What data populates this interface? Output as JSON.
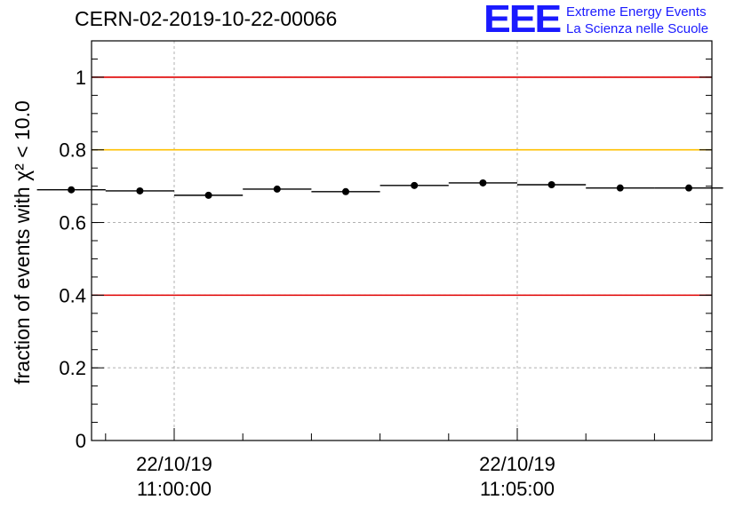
{
  "header": {
    "title": "CERN-02-2019-10-22-00066",
    "logo_mark": "EEE",
    "logo_line1": "Extreme Energy Events",
    "logo_line2": "La Scienza nelle Scuole"
  },
  "colors": {
    "red_line": "#e00000",
    "yellow_line": "#ffc000",
    "logo": "#1a1aff"
  },
  "chart_data": {
    "type": "scatter",
    "title": "CERN-02-2019-10-22-00066",
    "ylabel": "fraction of events with χ² < 10.0",
    "xlabel": "",
    "ylim": [
      0,
      1.1
    ],
    "yticks": [
      "0",
      "0.2",
      "0.4",
      "0.6",
      "0.8",
      "1"
    ],
    "xtick_labels": [
      {
        "date": "22/10/19",
        "time": "11:00:00"
      },
      {
        "date": "22/10/19",
        "time": "11:05:00"
      }
    ],
    "grid": true,
    "reference_lines": [
      {
        "y": 1.0,
        "color": "red"
      },
      {
        "y": 0.8,
        "color": "yellow"
      },
      {
        "y": 0.4,
        "color": "red"
      }
    ],
    "bin_width_minutes": 1,
    "series": [
      {
        "x": [
          "10:58:30",
          "10:59:30",
          "11:00:30",
          "11:01:30",
          "11:02:30",
          "11:03:30",
          "11:04:30",
          "11:05:30",
          "11:06:30",
          "11:07:30"
        ],
        "values": [
          0.69,
          0.687,
          0.675,
          0.692,
          0.685,
          0.702,
          0.709,
          0.704,
          0.695,
          0.695
        ]
      }
    ]
  }
}
